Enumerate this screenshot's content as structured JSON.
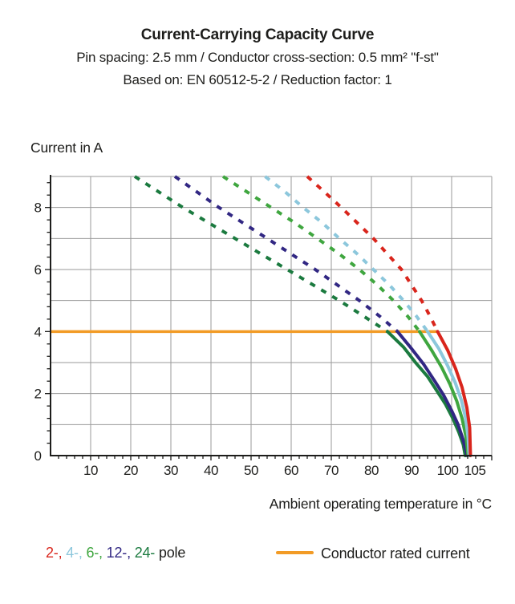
{
  "header": {
    "title": "Current-Carrying Capacity Curve",
    "subtitle1": "Pin spacing: 2.5 mm / Conductor cross-section: 0.5 mm² \"f-st\"",
    "subtitle2": "Based on: EN 60512-5-2 / Reduction factor: 1"
  },
  "axes": {
    "y_label": "Current in A",
    "x_label": "Ambient operating temperature in °C",
    "x_ticks": [
      10,
      20,
      30,
      40,
      50,
      60,
      70,
      80,
      90,
      100,
      105
    ],
    "y_ticks": [
      0,
      2,
      4,
      6,
      8
    ],
    "text_color": "#1d1d1b",
    "grid_color": "#9a9a9a",
    "axis_color": "#1d1d1b"
  },
  "chart_data": {
    "type": "line",
    "title": "Current-Carrying Capacity Curve",
    "xlabel": "Ambient operating temperature in °C",
    "ylabel": "Current in A",
    "xlim": [
      0,
      110
    ],
    "ylim": [
      0,
      9
    ],
    "grid": true,
    "x_gridline_step": 10,
    "y_gridline_step": 1,
    "rated_current": {
      "label": "Conductor rated current",
      "value_amps": 4,
      "color": "#F29B26",
      "x_start": 0,
      "x_end": 96.5
    },
    "series": [
      {
        "name": "24-pole",
        "poles": 24,
        "color": "#1B7A3F",
        "dashed_above_rated": true,
        "dashed": [
          [
            21,
            9
          ],
          [
            27,
            8.5
          ],
          [
            33,
            8
          ],
          [
            39.5,
            7.5
          ],
          [
            46,
            7
          ],
          [
            52.5,
            6.5
          ],
          [
            59,
            6
          ],
          [
            65.5,
            5.5
          ],
          [
            72,
            5
          ],
          [
            78,
            4.5
          ],
          [
            84,
            4
          ]
        ],
        "solid": [
          [
            84,
            4
          ],
          [
            88,
            3.5
          ],
          [
            91,
            3
          ],
          [
            94,
            2.55
          ],
          [
            96.5,
            2.05
          ],
          [
            98.5,
            1.65
          ],
          [
            100.3,
            1.2
          ],
          [
            101.8,
            0.75
          ],
          [
            102.9,
            0.35
          ],
          [
            103.4,
            0
          ]
        ]
      },
      {
        "name": "12-pole",
        "poles": 12,
        "color": "#312783",
        "dashed_above_rated": true,
        "dashed": [
          [
            31,
            9
          ],
          [
            36.5,
            8.5
          ],
          [
            42,
            8
          ],
          [
            48,
            7.5
          ],
          [
            54,
            7
          ],
          [
            60,
            6.5
          ],
          [
            66,
            6
          ],
          [
            71.5,
            5.5
          ],
          [
            77,
            5
          ],
          [
            82,
            4.5
          ],
          [
            86.5,
            4
          ]
        ],
        "solid": [
          [
            86.5,
            4
          ],
          [
            90,
            3.45
          ],
          [
            93,
            2.95
          ],
          [
            95.8,
            2.4
          ],
          [
            98,
            1.95
          ],
          [
            100,
            1.45
          ],
          [
            101.6,
            1
          ],
          [
            102.9,
            0.5
          ],
          [
            103.9,
            0
          ]
        ]
      },
      {
        "name": "6-pole",
        "poles": 6,
        "color": "#3FA63F",
        "dashed_above_rated": true,
        "dashed": [
          [
            43,
            9
          ],
          [
            49,
            8.5
          ],
          [
            55,
            8
          ],
          [
            61,
            7.5
          ],
          [
            66.5,
            7
          ],
          [
            72,
            6.5
          ],
          [
            77,
            6
          ],
          [
            81.5,
            5.5
          ],
          [
            85.5,
            5
          ],
          [
            89,
            4.5
          ],
          [
            92,
            4
          ]
        ],
        "solid": [
          [
            92,
            4
          ],
          [
            95,
            3.4
          ],
          [
            97.5,
            2.85
          ],
          [
            99.6,
            2.3
          ],
          [
            101.3,
            1.75
          ],
          [
            102.6,
            1.2
          ],
          [
            103.6,
            0.6
          ],
          [
            104.1,
            0
          ]
        ]
      },
      {
        "name": "4-pole",
        "poles": 4,
        "color": "#8CC7DC",
        "dashed_above_rated": true,
        "dashed": [
          [
            53.5,
            9
          ],
          [
            58.5,
            8.5
          ],
          [
            63,
            8
          ],
          [
            67.8,
            7.5
          ],
          [
            72,
            7
          ],
          [
            76.5,
            6.5
          ],
          [
            80.5,
            6
          ],
          [
            84.5,
            5.5
          ],
          [
            88,
            5
          ],
          [
            91.2,
            4.5
          ],
          [
            94,
            4
          ]
        ],
        "solid": [
          [
            94,
            4
          ],
          [
            96.8,
            3.45
          ],
          [
            99,
            2.9
          ],
          [
            100.9,
            2.35
          ],
          [
            102.4,
            1.8
          ],
          [
            103.5,
            1.2
          ],
          [
            104.1,
            0.6
          ],
          [
            104.35,
            0
          ]
        ]
      },
      {
        "name": "2-pole",
        "poles": 2,
        "color": "#D9251C",
        "dashed_above_rated": true,
        "dashed": [
          [
            64,
            9
          ],
          [
            68.3,
            8.5
          ],
          [
            72.5,
            8
          ],
          [
            76.5,
            7.5
          ],
          [
            80.5,
            7
          ],
          [
            84,
            6.5
          ],
          [
            87.5,
            6
          ],
          [
            90,
            5.5
          ],
          [
            92.5,
            5
          ],
          [
            94.6,
            4.5
          ],
          [
            96.5,
            4
          ]
        ],
        "solid": [
          [
            96.5,
            4
          ],
          [
            99,
            3.4
          ],
          [
            101,
            2.8
          ],
          [
            102.6,
            2.2
          ],
          [
            103.8,
            1.55
          ],
          [
            104.5,
            0.9
          ],
          [
            104.7,
            0
          ]
        ]
      }
    ]
  },
  "legend": {
    "pole_labels": [
      {
        "text": "2-,",
        "color": "#D9251C"
      },
      {
        "text": "4-,",
        "color": "#8CC7DC"
      },
      {
        "text": "6-,",
        "color": "#3FA63F"
      },
      {
        "text": "12-,",
        "color": "#312783"
      },
      {
        "text": "24-",
        "color": "#1B7A3F"
      }
    ],
    "suffix": "pole",
    "rated": {
      "label": "Conductor rated current",
      "color": "#F29B26"
    }
  }
}
